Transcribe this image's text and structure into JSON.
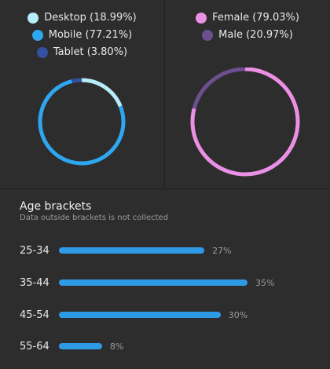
{
  "devices": {
    "legend": [
      {
        "label": "Desktop (18.99%)",
        "color": "#b7ecfb"
      },
      {
        "label": "Mobile (77.21%)",
        "color": "#2ea6f0"
      },
      {
        "label": "Tablet (3.80%)",
        "color": "#3450a0"
      }
    ],
    "chart_data": {
      "type": "pie",
      "categories": [
        "Desktop",
        "Mobile",
        "Tablet"
      ],
      "values": [
        18.99,
        77.21,
        3.8
      ],
      "colors": [
        "#b7ecfb",
        "#2ea6f0",
        "#3450a0"
      ]
    }
  },
  "gender": {
    "legend": [
      {
        "label": "Female (79.03%)",
        "color": "#ec90e6"
      },
      {
        "label": "Male (20.97%)",
        "color": "#6b4f8f"
      }
    ],
    "chart_data": {
      "type": "pie",
      "categories": [
        "Female",
        "Male"
      ],
      "values": [
        79.03,
        20.97
      ],
      "colors": [
        "#ec90e6",
        "#6b4f8f"
      ]
    }
  },
  "age": {
    "title": "Age brackets",
    "subtitle": "Data outside brackets is not collected",
    "bar_color": "#2e9ae6",
    "chart_data": {
      "type": "bar",
      "categories": [
        "25-34",
        "35-44",
        "45-54",
        "55-64"
      ],
      "values": [
        27,
        35,
        30,
        8
      ],
      "value_labels": [
        "27%",
        "35%",
        "30%",
        "8%"
      ]
    }
  }
}
